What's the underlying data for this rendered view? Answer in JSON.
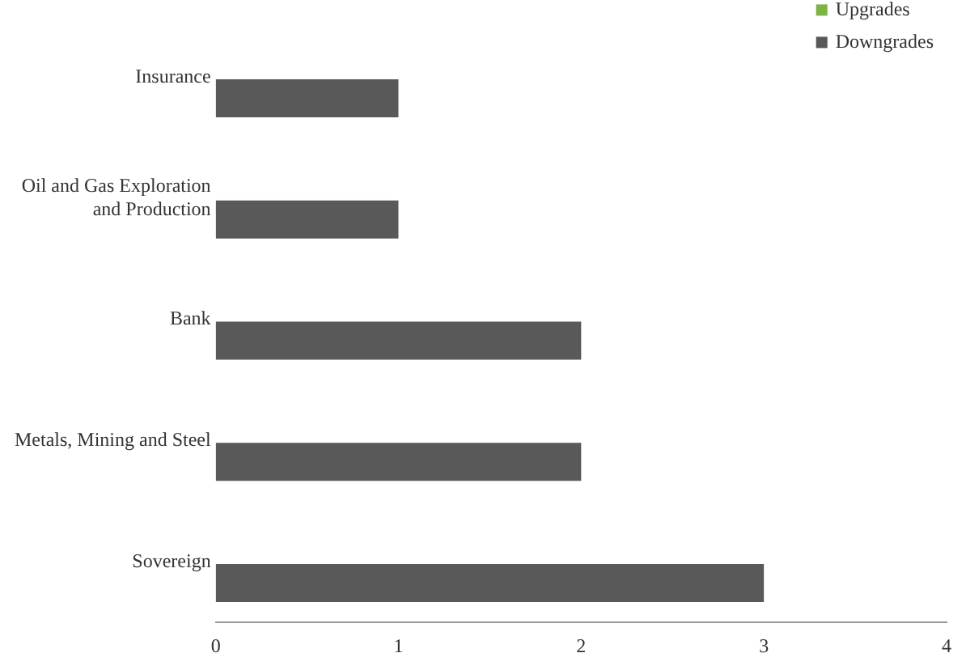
{
  "chart_data": {
    "type": "bar",
    "orientation": "horizontal",
    "categories": [
      "Insurance",
      "Oil and Gas Exploration and Production",
      "Bank",
      "Metals, Mining and Steel",
      "Sovereign"
    ],
    "series": [
      {
        "name": "Upgrades",
        "color": "#7cb342",
        "values": [
          0,
          0,
          0,
          0,
          0
        ]
      },
      {
        "name": "Downgrades",
        "color": "#595959",
        "values": [
          1,
          1,
          2,
          2,
          3
        ]
      }
    ],
    "xlim": [
      0,
      4
    ],
    "xticks": [
      0,
      1,
      2,
      3,
      4
    ],
    "grid": false,
    "legend": "top right"
  }
}
